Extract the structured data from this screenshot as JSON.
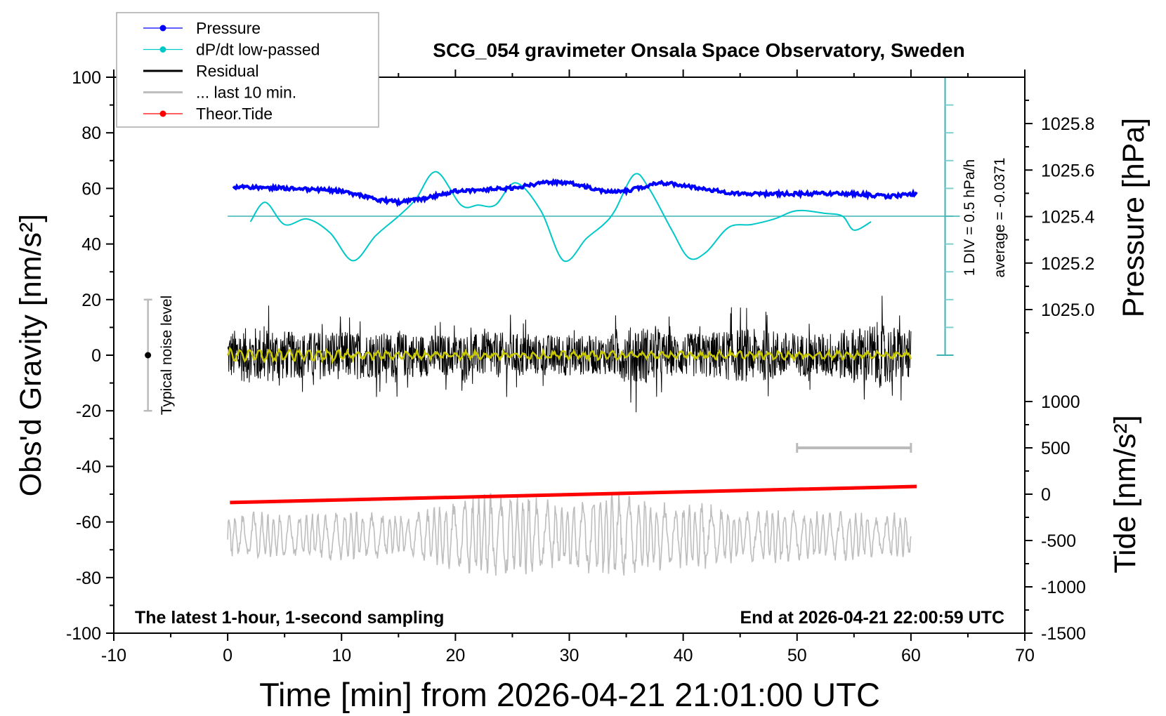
{
  "chart_data": {
    "type": "line",
    "title": "SCG_054 gravimeter Onsala Space Observatory, Sweden",
    "xlabel": "Time [min] from 2026-04-21 21:01:00 UTC",
    "ylabel": "Obs'd Gravity [nm/s²]",
    "ylabel_right_top": "Pressure [hPa]",
    "ylabel_right_bottom": "Tide [nm/s²]",
    "xlim": [
      -10,
      70
    ],
    "ylim": [
      -100,
      100
    ],
    "pressure_lim": [
      1024.8,
      1026.0
    ],
    "tide_lim": [
      -1500,
      1000
    ],
    "xticks": [
      "-10",
      "0",
      "10",
      "20",
      "30",
      "40",
      "50",
      "60",
      "70"
    ],
    "yticks": [
      "100",
      "80",
      "60",
      "40",
      "20",
      "0",
      "-20",
      "-40",
      "-60",
      "-80",
      "-100"
    ],
    "pressure_ticks": [
      "1025.8",
      "1025.6",
      "1025.4",
      "1025.2",
      "1025.0"
    ],
    "tide_ticks": [
      "1000",
      "500",
      "0",
      "-500",
      "-1000",
      "-1500"
    ],
    "grid": false,
    "legend": {
      "placement": "top-left",
      "entries": [
        {
          "label": "Pressure",
          "color": "#0000ff"
        },
        {
          "label": "dP/dt low-passed",
          "color": "#00c8c8"
        },
        {
          "label": "Residual",
          "color": "#000000"
        },
        {
          "label": "... last 10 min.",
          "color": "#bebebe"
        },
        {
          "label": "Theor.Tide",
          "color": "#ff0000"
        }
      ]
    },
    "annotations": {
      "bottom_left": "The latest 1-hour, 1-second sampling",
      "bottom_right": "End at 2026-04-21 22:00:59 UTC",
      "div_label": "1 DIV = 0.5 hPa/h",
      "average_label": "average = -0.0371",
      "noise_label": "Typical noise level",
      "noise_level": [
        -20,
        20
      ]
    },
    "series": [
      {
        "name": "Pressure",
        "unit": "hPa",
        "color": "#0000ff",
        "x": [
          0.5,
          5,
          10,
          13,
          15,
          17,
          20,
          25,
          28,
          30,
          33,
          35,
          38,
          40,
          43,
          45,
          50,
          55,
          58,
          60.5
        ],
        "y": [
          1025.528,
          1025.522,
          1025.51,
          1025.474,
          1025.462,
          1025.474,
          1025.51,
          1025.522,
          1025.546,
          1025.546,
          1025.51,
          1025.51,
          1025.546,
          1025.534,
          1025.51,
          1025.498,
          1025.498,
          1025.498,
          1025.486,
          1025.498
        ]
      },
      {
        "name": "dP/dt low-passed",
        "unit": "hPa/h",
        "color": "#00c8c8",
        "x": [
          2,
          3.3,
          5,
          7,
          9,
          11,
          13,
          15,
          16.5,
          18.3,
          20.5,
          22,
          23.5,
          25.3,
          27.5,
          29.5,
          31.5,
          33,
          34,
          35.7,
          37,
          39,
          40.5,
          42,
          44,
          46,
          48,
          50,
          52.5,
          54,
          55,
          56.5
        ],
        "y": [
          -0.1,
          0.25,
          -0.15,
          -0.05,
          -0.3,
          -0.8,
          -0.35,
          0,
          0.3,
          0.8,
          0.2,
          0.2,
          0.2,
          0.6,
          0.1,
          -0.8,
          -0.4,
          -0.15,
          0.1,
          0.75,
          0.5,
          -0.25,
          -0.75,
          -0.65,
          -0.2,
          -0.15,
          -0.05,
          0.1,
          0.05,
          0,
          -0.25,
          -0.1
        ]
      },
      {
        "name": "Residual",
        "unit": "nm/s²",
        "color": "#000000",
        "x_range": [
          0,
          60
        ],
        "amplitude_every_3min": [
          12,
          14,
          11,
          12,
          11,
          11,
          10,
          10,
          11,
          10,
          10,
          9,
          15,
          10,
          11,
          13,
          12,
          10,
          12,
          16,
          12
        ]
      },
      {
        "name": "... last 10 min.",
        "unit": "nm/s²",
        "color": "#bebebe",
        "x_range": [
          0,
          60
        ],
        "baseline": -65,
        "amplitude_every_3min": [
          6,
          7,
          6,
          7,
          7,
          6,
          8,
          11,
          13,
          11,
          10,
          12,
          12,
          9,
          10,
          7,
          8,
          7,
          7,
          6,
          7
        ]
      },
      {
        "name": "Theor.Tide",
        "unit": "nm/s²",
        "color": "#ff0000",
        "x": [
          0.2,
          60.5
        ],
        "y": [
          -90,
          83
        ]
      }
    ],
    "smoothed_residual_color": "#c8c800"
  }
}
